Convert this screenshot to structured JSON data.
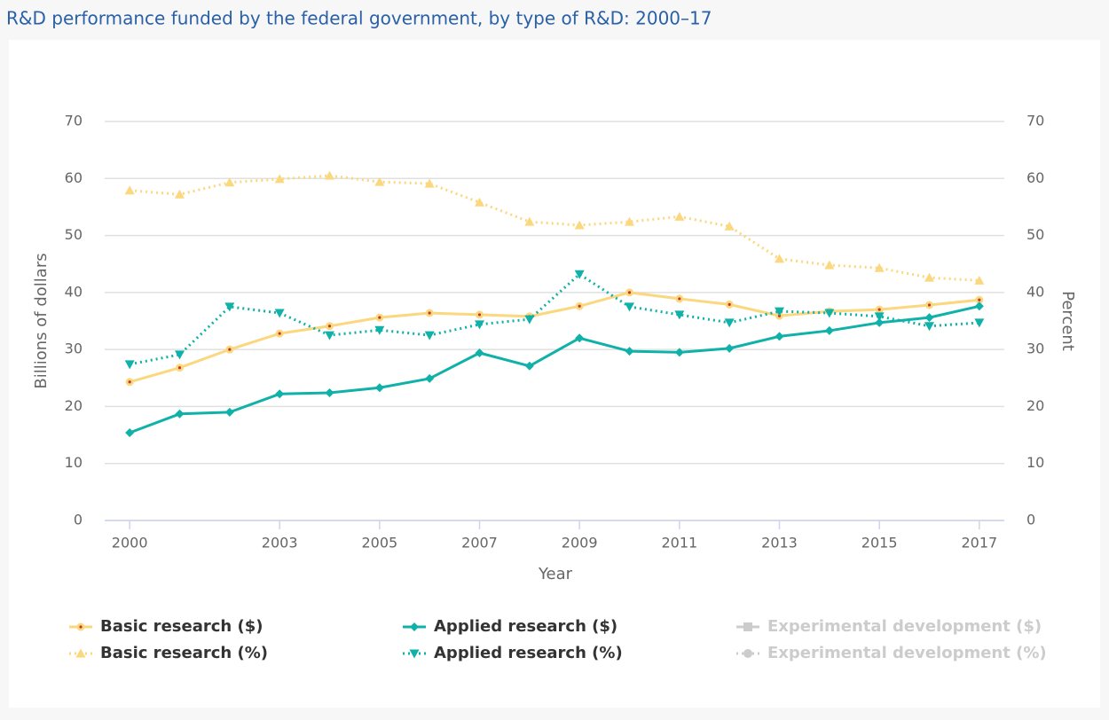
{
  "chart_data": {
    "type": "line",
    "title": "R&D performance funded by the federal government, by type of R&D: 2000–17",
    "x_label": "Year",
    "y_label": "Billions of dollars",
    "y2_label": "Percent",
    "x": [
      2000,
      2001,
      2002,
      2003,
      2004,
      2005,
      2006,
      2007,
      2008,
      2009,
      2010,
      2011,
      2012,
      2013,
      2014,
      2015,
      2016,
      2017
    ],
    "xlim": [
      1999.5,
      2017.5
    ],
    "xticks": [
      2000,
      2003,
      2005,
      2007,
      2009,
      2011,
      2013,
      2015,
      2017
    ],
    "ylim": [
      0,
      70
    ],
    "yticks": [
      0,
      10,
      20,
      30,
      40,
      50,
      60,
      70
    ],
    "y2lim": [
      0,
      70
    ],
    "y2ticks": [
      0,
      10,
      20,
      30,
      40,
      50,
      60,
      70
    ],
    "grid": true,
    "series": [
      {
        "name": "Basic research ($)",
        "color": "#fbd77e",
        "marker": "circle",
        "dash": false,
        "axis": "y",
        "values": [
          24.3,
          26.8,
          30.0,
          32.8,
          34.1,
          35.6,
          36.4,
          36.1,
          35.8,
          37.6,
          40.0,
          38.9,
          37.9,
          35.9,
          36.7,
          37.0,
          37.8,
          38.7
        ]
      },
      {
        "name": "Basic research (%)",
        "color": "#fbd77e",
        "marker": "triangle-up",
        "dash": true,
        "axis": "y2",
        "values": [
          57.9,
          57.2,
          59.3,
          59.9,
          60.5,
          59.4,
          59.1,
          55.8,
          52.4,
          51.8,
          52.4,
          53.3,
          51.6,
          45.9,
          44.8,
          44.3,
          42.6,
          42.1
        ]
      },
      {
        "name": "Applied research ($)",
        "color": "#10b1a8",
        "marker": "diamond",
        "dash": false,
        "axis": "y",
        "values": [
          15.4,
          18.7,
          19.0,
          22.2,
          22.4,
          23.3,
          24.9,
          29.4,
          27.1,
          32.0,
          29.7,
          29.5,
          30.2,
          32.3,
          33.3,
          34.7,
          35.6,
          37.6
        ]
      },
      {
        "name": "Applied research (%)",
        "color": "#10b1a8",
        "marker": "triangle-down",
        "dash": true,
        "axis": "y2",
        "values": [
          27.4,
          29.1,
          37.5,
          36.4,
          32.5,
          33.4,
          32.5,
          34.4,
          35.3,
          43.2,
          37.5,
          36.1,
          34.7,
          36.7,
          36.4,
          35.8,
          34.1,
          34.7
        ]
      }
    ],
    "legend_hidden": [
      "Experimental development ($)",
      "Experimental development (%)"
    ],
    "legend_hidden_color": "#cccccc"
  }
}
